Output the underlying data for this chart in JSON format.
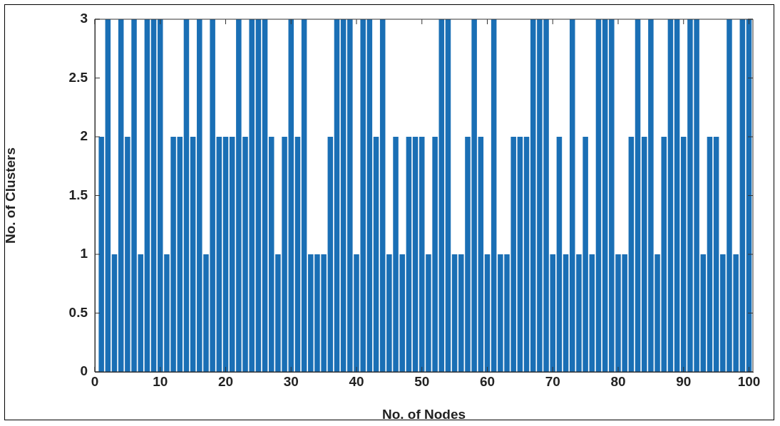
{
  "chart_data": {
    "type": "bar",
    "xlabel": "No. of Nodes",
    "ylabel": "No. of Clusters",
    "color": "#1a6fb5",
    "x": [
      1,
      2,
      3,
      4,
      5,
      6,
      7,
      8,
      9,
      10,
      11,
      12,
      13,
      14,
      15,
      16,
      17,
      18,
      19,
      20,
      21,
      22,
      23,
      24,
      25,
      26,
      27,
      28,
      29,
      30,
      31,
      32,
      33,
      34,
      35,
      36,
      37,
      38,
      39,
      40,
      41,
      42,
      43,
      44,
      45,
      46,
      47,
      48,
      49,
      50,
      51,
      52,
      53,
      54,
      55,
      56,
      57,
      58,
      59,
      60,
      61,
      62,
      63,
      64,
      65,
      66,
      67,
      68,
      69,
      70,
      71,
      72,
      73,
      74,
      75,
      76,
      77,
      78,
      79,
      80,
      81,
      82,
      83,
      84,
      85,
      86,
      87,
      88,
      89,
      90,
      91,
      92,
      93,
      94,
      95,
      96,
      97,
      98,
      99,
      100
    ],
    "values": [
      2,
      3,
      1,
      3,
      2,
      3,
      1,
      3,
      3,
      3,
      1,
      2,
      2,
      3,
      2,
      3,
      1,
      3,
      2,
      2,
      2,
      3,
      2,
      3,
      3,
      3,
      2,
      1,
      2,
      3,
      2,
      3,
      1,
      1,
      1,
      2,
      3,
      3,
      3,
      1,
      3,
      3,
      2,
      3,
      1,
      2,
      1,
      2,
      2,
      2,
      1,
      2,
      3,
      3,
      1,
      1,
      2,
      3,
      2,
      1,
      3,
      1,
      1,
      2,
      2,
      2,
      3,
      3,
      3,
      1,
      2,
      1,
      3,
      1,
      2,
      1,
      3,
      3,
      3,
      1,
      1,
      2,
      3,
      2,
      3,
      1,
      2,
      3,
      3,
      2,
      3,
      3,
      1,
      2,
      2,
      1,
      3,
      1,
      3,
      3
    ],
    "xlim": [
      0,
      100.6
    ],
    "xticks": [
      0,
      10,
      20,
      30,
      40,
      50,
      60,
      70,
      80,
      90,
      100
    ],
    "ylim": [
      0,
      3
    ],
    "yticks": [
      0,
      0.5,
      1,
      1.5,
      2,
      2.5,
      3
    ],
    "grid": false,
    "legend": false
  }
}
